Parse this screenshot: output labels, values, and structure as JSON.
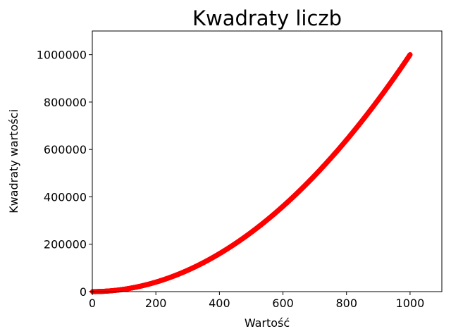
{
  "chart_data": {
    "type": "scatter",
    "title": "Kwadraty liczb",
    "xlabel": "Wartość",
    "ylabel": "Kwadraty wartości",
    "xlim": [
      0,
      1100
    ],
    "ylim": [
      0,
      1100000
    ],
    "xticks": [
      0,
      200,
      400,
      600,
      800,
      1000
    ],
    "yticks": [
      0,
      200000,
      400000,
      600000,
      800000,
      1000000
    ],
    "xtick_labels": [
      "0",
      "200",
      "400",
      "600",
      "800",
      "1000"
    ],
    "ytick_labels": [
      "0",
      "200000",
      "400000",
      "600000",
      "800000",
      "1000000"
    ],
    "grid": false,
    "series": [
      {
        "color": "#ff0000",
        "x_start": 1,
        "x_end": 1000,
        "x_step": 1,
        "y_rule": "x^2"
      }
    ]
  }
}
